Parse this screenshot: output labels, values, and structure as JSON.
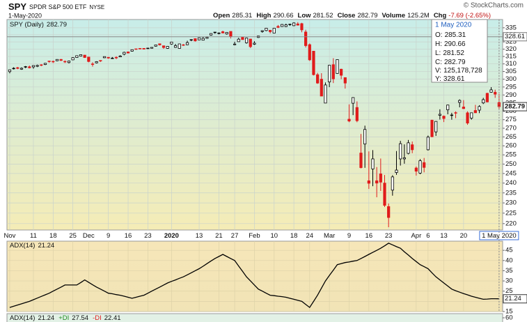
{
  "header": {
    "symbol": "SPY",
    "name": "SPDR S&P 500 ETF",
    "exchange": "NYSE",
    "date": "1-May-2020",
    "open_label": "Open",
    "high_label": "High",
    "low_label": "Low",
    "close_label": "Close",
    "volume_label": "Volume",
    "volume": "125.2M",
    "chg_label": "Chg",
    "chg": "-7.69 (-2.65%)",
    "copyright": "© StockCharts.com"
  },
  "chart_data": [
    {
      "type": "candlestick",
      "legend": "SPY (Daily)",
      "open": [
        304.9,
        307.0,
        307.5,
        306.5,
        307.9,
        308.1,
        308.0,
        308.4,
        309.4,
        309.6,
        311.9,
        311.7,
        312.1,
        313.0,
        311.7,
        310.9,
        312.7,
        314.3,
        315.3,
        315.9,
        314.6,
        310.0,
        310.7,
        312.3,
        314.1,
        314.4,
        313.6,
        314.4,
        314.7,
        316.5,
        318.1,
        318.6,
        320.2,
        320.5,
        320.5,
        320.3,
        320.6,
        322.0,
        323.7,
        322.3,
        320.5,
        323.5,
        321.2,
        320.5,
        323.0,
        323.0,
        326.2,
        327.3,
        326.4,
        326.2,
        327.5,
        329.8,
        331.8,
        330.9,
        332.2,
        330.6,
        332.4,
        323.0,
        325.1,
        328.4,
        324.4,
        327.0,
        323.4,
        328.1,
        332.3,
        333.0,
        333.2,
        331.2,
        336.0,
        335.9,
        335.9,
        337.5,
        336.5,
        337.8,
        338.0,
        332.0,
        323.1,
        318.6,
        302.9,
        300.0,
        285.0,
        298.2,
        309.5,
        303.7,
        306.5,
        301.0,
        275.3,
        284.9,
        282.3,
        256.0,
        261.0,
        241.2,
        247.4,
        241.2,
        244.8,
        240.0,
        228.2,
        236.4,
        245.5,
        252.8,
        252.8,
        255.8,
        260.6,
        247.9,
        245.2,
        250.8,
        257.8,
        274.7,
        267.9,
        277.6,
        277.1,
        280.9,
        277.6,
        279.2,
        285.4,
        282.6,
        279.1,
        275.9,
        280.5,
        280.7,
        285.1,
        291.0,
        291.7,
        291.7,
        285.31
      ],
      "high": [
        306.2,
        307.8,
        308.0,
        307.7,
        308.6,
        308.9,
        309.0,
        309.5,
        309.8,
        310.6,
        312.1,
        312.2,
        313.1,
        313.3,
        312.3,
        312.1,
        314.5,
        315.6,
        316.3,
        316.0,
        314.7,
        311.1,
        311.8,
        312.5,
        315.0,
        314.6,
        314.6,
        315.1,
        315.9,
        318.2,
        318.3,
        319.7,
        320.3,
        320.5,
        320.6,
        320.8,
        321.2,
        322.9,
        323.8,
        322.3,
        322.1,
        325.0,
        323.6,
        323.7,
        323.5,
        325.8,
        326.8,
        327.5,
        327.9,
        328.6,
        328.8,
        330.9,
        332.0,
        331.6,
        332.9,
        331.8,
        332.4,
        325.1,
        327.9,
        328.6,
        327.9,
        327.2,
        325.5,
        329.2,
        333.1,
        334.8,
        333.5,
        334.8,
        337.0,
        337.7,
        338.0,
        337.8,
        338.9,
        339.1,
        338.6,
        333.6,
        323.9,
        318.6,
        304.1,
        303.9,
        297.9,
        309.2,
        313.8,
        313.1,
        306.8,
        301.2,
        284.2,
        288.5,
        286.0,
        266.7,
        271.5,
        256.9,
        257.6,
        248.4,
        253.0,
        244.2,
        229.7,
        244.1,
        257.1,
        262.8,
        260.8,
        263.3,
        262.4,
        248.7,
        252.7,
        253.3,
        265.8,
        275.0,
        274.1,
        281.2,
        277.5,
        284.0,
        279.1,
        280.0,
        287.3,
        286.8,
        280.0,
        279.2,
        283.9,
        283.7,
        288.2,
        291.4,
        294.9,
        293.3,
        290.66
      ],
      "low": [
        303.8,
        306.3,
        306.5,
        306.1,
        307.2,
        307.0,
        306.8,
        307.9,
        308.5,
        309.2,
        310.8,
        310.6,
        311.8,
        312.0,
        310.6,
        310.3,
        312.5,
        314.1,
        315.2,
        314.0,
        311.1,
        308.2,
        310.3,
        311.3,
        313.9,
        313.5,
        313.5,
        313.2,
        314.6,
        315.8,
        317.3,
        318.3,
        319.6,
        319.9,
        319.8,
        320.1,
        320.5,
        321.7,
        322.5,
        320.2,
        320.2,
        323.0,
        320.9,
        320.4,
        322.2,
        322.7,
        325.5,
        325.2,
        326.3,
        326.0,
        327.2,
        329.4,
        330.8,
        330.3,
        331.0,
        330.1,
        327.4,
        322.7,
        325.1,
        326.6,
        323.8,
        320.7,
        322.9,
        327.8,
        331.5,
        332.6,
        331.0,
        331.2,
        334.8,
        335.8,
        335.5,
        336.4,
        336.2,
        336.6,
        331.8,
        321.1,
        312.0,
        302.4,
        297.0,
        289.2,
        285.5,
        294.9,
        297.5,
        303.6,
        300.0,
        294.0,
        273.5,
        277.7,
        273.5,
        247.7,
        248.0,
        237.0,
        238.4,
        232.8,
        236.0,
        228.0,
        218.3,
        233.6,
        244.3,
        249.2,
        250.2,
        255.3,
        255.9,
        243.9,
        244.6,
        245.6,
        257.4,
        264.9,
        265.6,
        275.1,
        273.6,
        278.2,
        275.0,
        275.9,
        282.4,
        281.4,
        272.0,
        275.0,
        279.0,
        278.9,
        284.4,
        285.4,
        291.4,
        288.2,
        281.52
      ],
      "close": [
        306.1,
        307.1,
        307.0,
        307.1,
        308.2,
        307.4,
        308.9,
        309.0,
        309.1,
        310.4,
        311.8,
        311.4,
        313.0,
        312.3,
        311.3,
        311.9,
        314.2,
        315.5,
        316.2,
        314.3,
        311.6,
        309.6,
        311.5,
        312.0,
        314.9,
        313.9,
        313.9,
        314.0,
        315.3,
        317.8,
        317.3,
        319.6,
        320.0,
        320.4,
        320.0,
        320.7,
        321.2,
        322.9,
        322.9,
        321.1,
        321.9,
        324.9,
        322.4,
        323.6,
        322.7,
        324.5,
        326.6,
        325.7,
        327.9,
        327.5,
        328.2,
        330.9,
        331.9,
        331.3,
        331.3,
        331.7,
        328.8,
        323.5,
        326.9,
        326.6,
        327.7,
        321.7,
        324.1,
        329.1,
        332.9,
        334.7,
        332.2,
        334.7,
        335.3,
        337.4,
        337.1,
        337.6,
        338.5,
        336.9,
        333.5,
        322.4,
        312.7,
        302.9,
        297.5,
        289.3,
        296.3,
        309.1,
        300.2,
        312.9,
        302.5,
        297.5,
        274.2,
        288.4,
        274.4,
        248.1,
        269.3,
        239.9,
        252.8,
        240.0,
        240.5,
        228.8,
        222.9,
        243.2,
        246.8,
        261.2,
        253.4,
        261.7,
        257.8,
        246.2,
        251.8,
        248.2,
        264.9,
        265.1,
        274.0,
        278.2,
        275.7,
        283.8,
        277.8,
        279.1,
        286.6,
        281.6,
        273.0,
        279.1,
        279.1,
        282.9,
        287.1,
        285.7,
        293.2,
        290.5,
        282.79
      ],
      "up_color": "#000000",
      "down_color": "#e01b1b",
      "log_scale": true,
      "ylim": [
        217,
        341
      ],
      "yticks": [
        220,
        225,
        230,
        235,
        240,
        245,
        250,
        255,
        260,
        265,
        270,
        275,
        280,
        285,
        290,
        295,
        300,
        305,
        310,
        315,
        320,
        325,
        330,
        335
      ],
      "xlim": [
        -0.7,
        124.9
      ],
      "xticks": [
        {
          "value": 0,
          "label": "Nov"
        },
        {
          "value": 6,
          "label": "11"
        },
        {
          "value": 11,
          "label": "18"
        },
        {
          "value": 16,
          "label": "25"
        },
        {
          "value": 20,
          "label": "Dec"
        },
        {
          "value": 25,
          "label": "9"
        },
        {
          "value": 30,
          "label": "16"
        },
        {
          "value": 35,
          "label": "23"
        },
        {
          "value": 41,
          "label": "2020"
        },
        {
          "value": 48,
          "label": "13"
        },
        {
          "value": 53,
          "label": "21"
        },
        {
          "value": 57,
          "label": "27"
        },
        {
          "value": 62,
          "label": "Feb"
        },
        {
          "value": 67,
          "label": "10"
        },
        {
          "value": 72,
          "label": "18"
        },
        {
          "value": 76,
          "label": "24"
        },
        {
          "value": 81,
          "label": "Mar"
        },
        {
          "value": 86,
          "label": "9"
        },
        {
          "value": 91,
          "label": "16"
        },
        {
          "value": 96,
          "label": "23"
        },
        {
          "value": 103,
          "label": "Apr"
        },
        {
          "value": 106,
          "label": "6"
        },
        {
          "value": 110,
          "label": "13"
        },
        {
          "value": 115,
          "label": "20"
        },
        {
          "value": 124,
          "label": "1 May 2020"
        }
      ],
      "grid": true,
      "crosshair_y": 328.61,
      "tooltip": {
        "labels": [
          "O:",
          "H:",
          "L:",
          "C:",
          "V:",
          "Y:"
        ],
        "volume": "125,178,728"
      }
    },
    {
      "type": "line",
      "legend": "ADX(14)",
      "color": "#000000",
      "values": [
        17,
        17.6,
        18.2,
        18.8,
        19.4,
        20,
        20.8,
        21.6,
        22.4,
        23.2,
        24,
        25,
        26,
        27,
        28,
        28,
        28,
        28,
        29.2,
        30.5,
        29.3,
        28.1,
        27,
        26,
        25,
        24,
        23.7,
        23.3,
        23,
        22.5,
        22,
        21.5,
        22,
        22.5,
        23,
        24,
        25,
        26,
        27,
        28,
        29,
        29.8,
        30.5,
        31.3,
        32,
        33,
        34,
        35,
        36,
        37.2,
        38.5,
        39.8,
        41,
        42,
        43,
        42,
        41,
        40,
        37.3,
        34.7,
        32,
        30,
        28,
        26,
        25,
        24,
        23,
        22.8,
        22.5,
        22.3,
        22,
        21.5,
        21,
        20.5,
        20,
        18.5,
        17,
        20,
        23,
        26.5,
        30,
        32.7,
        35.3,
        38,
        38.5,
        39,
        39.3,
        39.7,
        40,
        41,
        42,
        43,
        44,
        45,
        46,
        47.2,
        48.5,
        47.7,
        46.8,
        46,
        44.3,
        42.7,
        41,
        39.5,
        38,
        37,
        36,
        34,
        32,
        30.5,
        29,
        27.5,
        26,
        25.2,
        24.5,
        23.8,
        23.2,
        22.5,
        22,
        21.5,
        21,
        21.1,
        21.3,
        21.3,
        21.24
      ],
      "xlim": [
        -0.7,
        124.9
      ],
      "ylim": [
        15,
        49.5
      ],
      "yticks": [
        15,
        20,
        25,
        30,
        35,
        40,
        45
      ],
      "grid": true
    },
    {
      "type": "indicator",
      "entries": [
        {
          "name": "+DI",
          "value": 27.54,
          "color": "#1f8a1f"
        },
        {
          "name": "-DI",
          "value": 22.41,
          "color": "#e01b1b"
        }
      ],
      "yticks": [
        60
      ]
    }
  ]
}
